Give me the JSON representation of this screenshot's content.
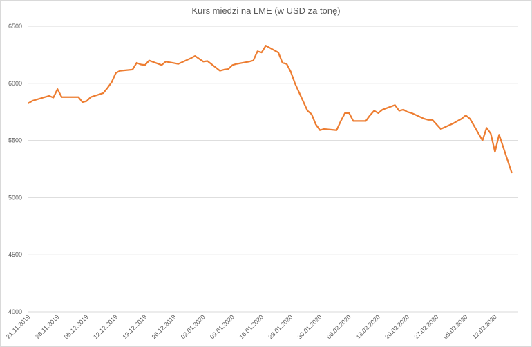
{
  "chart_data": {
    "type": "line",
    "title": "Kurs miedzi na LME (w USD za tonę)",
    "xlabel": "",
    "ylabel": "",
    "ylim": [
      4000,
      6500
    ],
    "yticks": [
      4000,
      4500,
      5000,
      5500,
      6000,
      6500
    ],
    "grid": true,
    "legend": "none",
    "line_color": "#ed7d31",
    "x_tick_labels": [
      "21.11.2019",
      "28.11.2019",
      "05.12.2019",
      "12.12.2019",
      "19.12.2019",
      "26.12.2019",
      "02.01.2020",
      "09.01.2020",
      "16.01.2020",
      "23.01.2020",
      "30.01.2020",
      "06.02.2020",
      "13.02.2020",
      "20.02.2020",
      "27.02.2020",
      "05.03.2020",
      "12.03.2020"
    ],
    "x_start": "2019-11-21",
    "series": [
      {
        "x": [
          "2019-11-21",
          "2019-11-22",
          "2019-11-25",
          "2019-11-26",
          "2019-11-27",
          "2019-11-28",
          "2019-11-29",
          "2019-12-02",
          "2019-12-03",
          "2019-12-04",
          "2019-12-05",
          "2019-12-06",
          "2019-12-09",
          "2019-12-10",
          "2019-12-11",
          "2019-12-12",
          "2019-12-13",
          "2019-12-16",
          "2019-12-17",
          "2019-12-18",
          "2019-12-19",
          "2019-12-20",
          "2019-12-23",
          "2019-12-24",
          "2019-12-27",
          "2019-12-30",
          "2019-12-31",
          "2020-01-02",
          "2020-01-03",
          "2020-01-06",
          "2020-01-07",
          "2020-01-08",
          "2020-01-09",
          "2020-01-10",
          "2020-01-13",
          "2020-01-14",
          "2020-01-15",
          "2020-01-16",
          "2020-01-17",
          "2020-01-20",
          "2020-01-21",
          "2020-01-22",
          "2020-01-23",
          "2020-01-24",
          "2020-01-27",
          "2020-01-28",
          "2020-01-29",
          "2020-01-30",
          "2020-01-31",
          "2020-02-03",
          "2020-02-04",
          "2020-02-05",
          "2020-02-06",
          "2020-02-07",
          "2020-02-10",
          "2020-02-11",
          "2020-02-12",
          "2020-02-13",
          "2020-02-14",
          "2020-02-17",
          "2020-02-18",
          "2020-02-19",
          "2020-02-20",
          "2020-02-21",
          "2020-02-24",
          "2020-02-25",
          "2020-02-26",
          "2020-02-27",
          "2020-02-28",
          "2020-03-02",
          "2020-03-03",
          "2020-03-04",
          "2020-03-05",
          "2020-03-06",
          "2020-03-09",
          "2020-03-10",
          "2020-03-11",
          "2020-03-12",
          "2020-03-13",
          "2020-03-16"
        ],
        "values": [
          5826,
          5847,
          5880,
          5890,
          5875,
          5950,
          5880,
          5880,
          5880,
          5835,
          5845,
          5880,
          5915,
          5960,
          6010,
          6090,
          6110,
          6120,
          6180,
          6165,
          6160,
          6200,
          6160,
          6190,
          6170,
          6220,
          6240,
          6190,
          6195,
          6110,
          6120,
          6125,
          6160,
          6170,
          6190,
          6200,
          6280,
          6270,
          6330,
          6270,
          6180,
          6170,
          6100,
          6000,
          5760,
          5730,
          5640,
          5590,
          5600,
          5590,
          5670,
          5740,
          5740,
          5670,
          5670,
          5720,
          5760,
          5740,
          5770,
          5810,
          5760,
          5770,
          5750,
          5740,
          5690,
          5680,
          5680,
          5640,
          5600,
          5650,
          5670,
          5690,
          5720,
          5690,
          5500,
          5610,
          5560,
          5400,
          5550,
          5220
        ]
      }
    ]
  }
}
